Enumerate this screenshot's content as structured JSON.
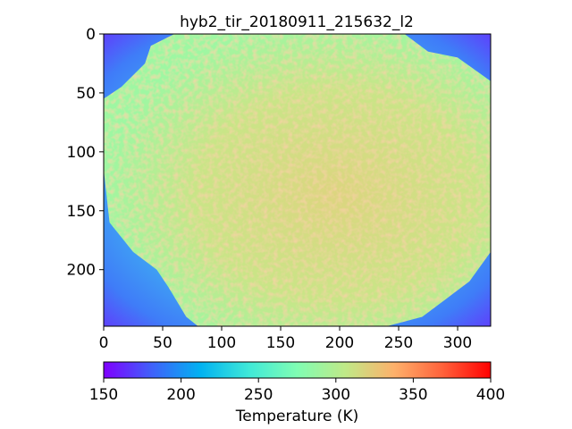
{
  "chart_data": {
    "type": "heatmap",
    "title": "hyb2_tir_20180911_215632_l2",
    "image_width": 328,
    "image_height": 248,
    "xlim": [
      0,
      328
    ],
    "ylim": [
      248,
      0
    ],
    "x_ticks": [
      0,
      50,
      100,
      150,
      200,
      250,
      300
    ],
    "x_tick_labels": [
      "0",
      "50",
      "100",
      "150",
      "200",
      "250",
      "300"
    ],
    "y_ticks": [
      0,
      50,
      100,
      150,
      200
    ],
    "y_tick_labels": [
      "0",
      "50",
      "100",
      "150",
      "200"
    ],
    "colormap": "rainbow",
    "colorbar": {
      "orientation": "horizontal",
      "label": "Temperature (K)",
      "range": [
        150,
        400
      ],
      "ticks": [
        150,
        200,
        250,
        300,
        350,
        400
      ],
      "tick_labels": [
        "150",
        "200",
        "250",
        "300",
        "350",
        "400"
      ]
    },
    "background_temperature_range": [
      155,
      210
    ],
    "target_temperature_range": [
      285,
      330
    ],
    "target_outline": [
      [
        60,
        0
      ],
      [
        255,
        0
      ],
      [
        275,
        15
      ],
      [
        300,
        20
      ],
      [
        328,
        40
      ],
      [
        328,
        185
      ],
      [
        310,
        210
      ],
      [
        290,
        225
      ],
      [
        270,
        240
      ],
      [
        240,
        248
      ],
      [
        80,
        248
      ],
      [
        70,
        240
      ],
      [
        55,
        215
      ],
      [
        45,
        200
      ],
      [
        25,
        185
      ],
      [
        5,
        160
      ],
      [
        0,
        115
      ],
      [
        0,
        55
      ],
      [
        15,
        45
      ],
      [
        35,
        25
      ],
      [
        40,
        10
      ]
    ]
  }
}
